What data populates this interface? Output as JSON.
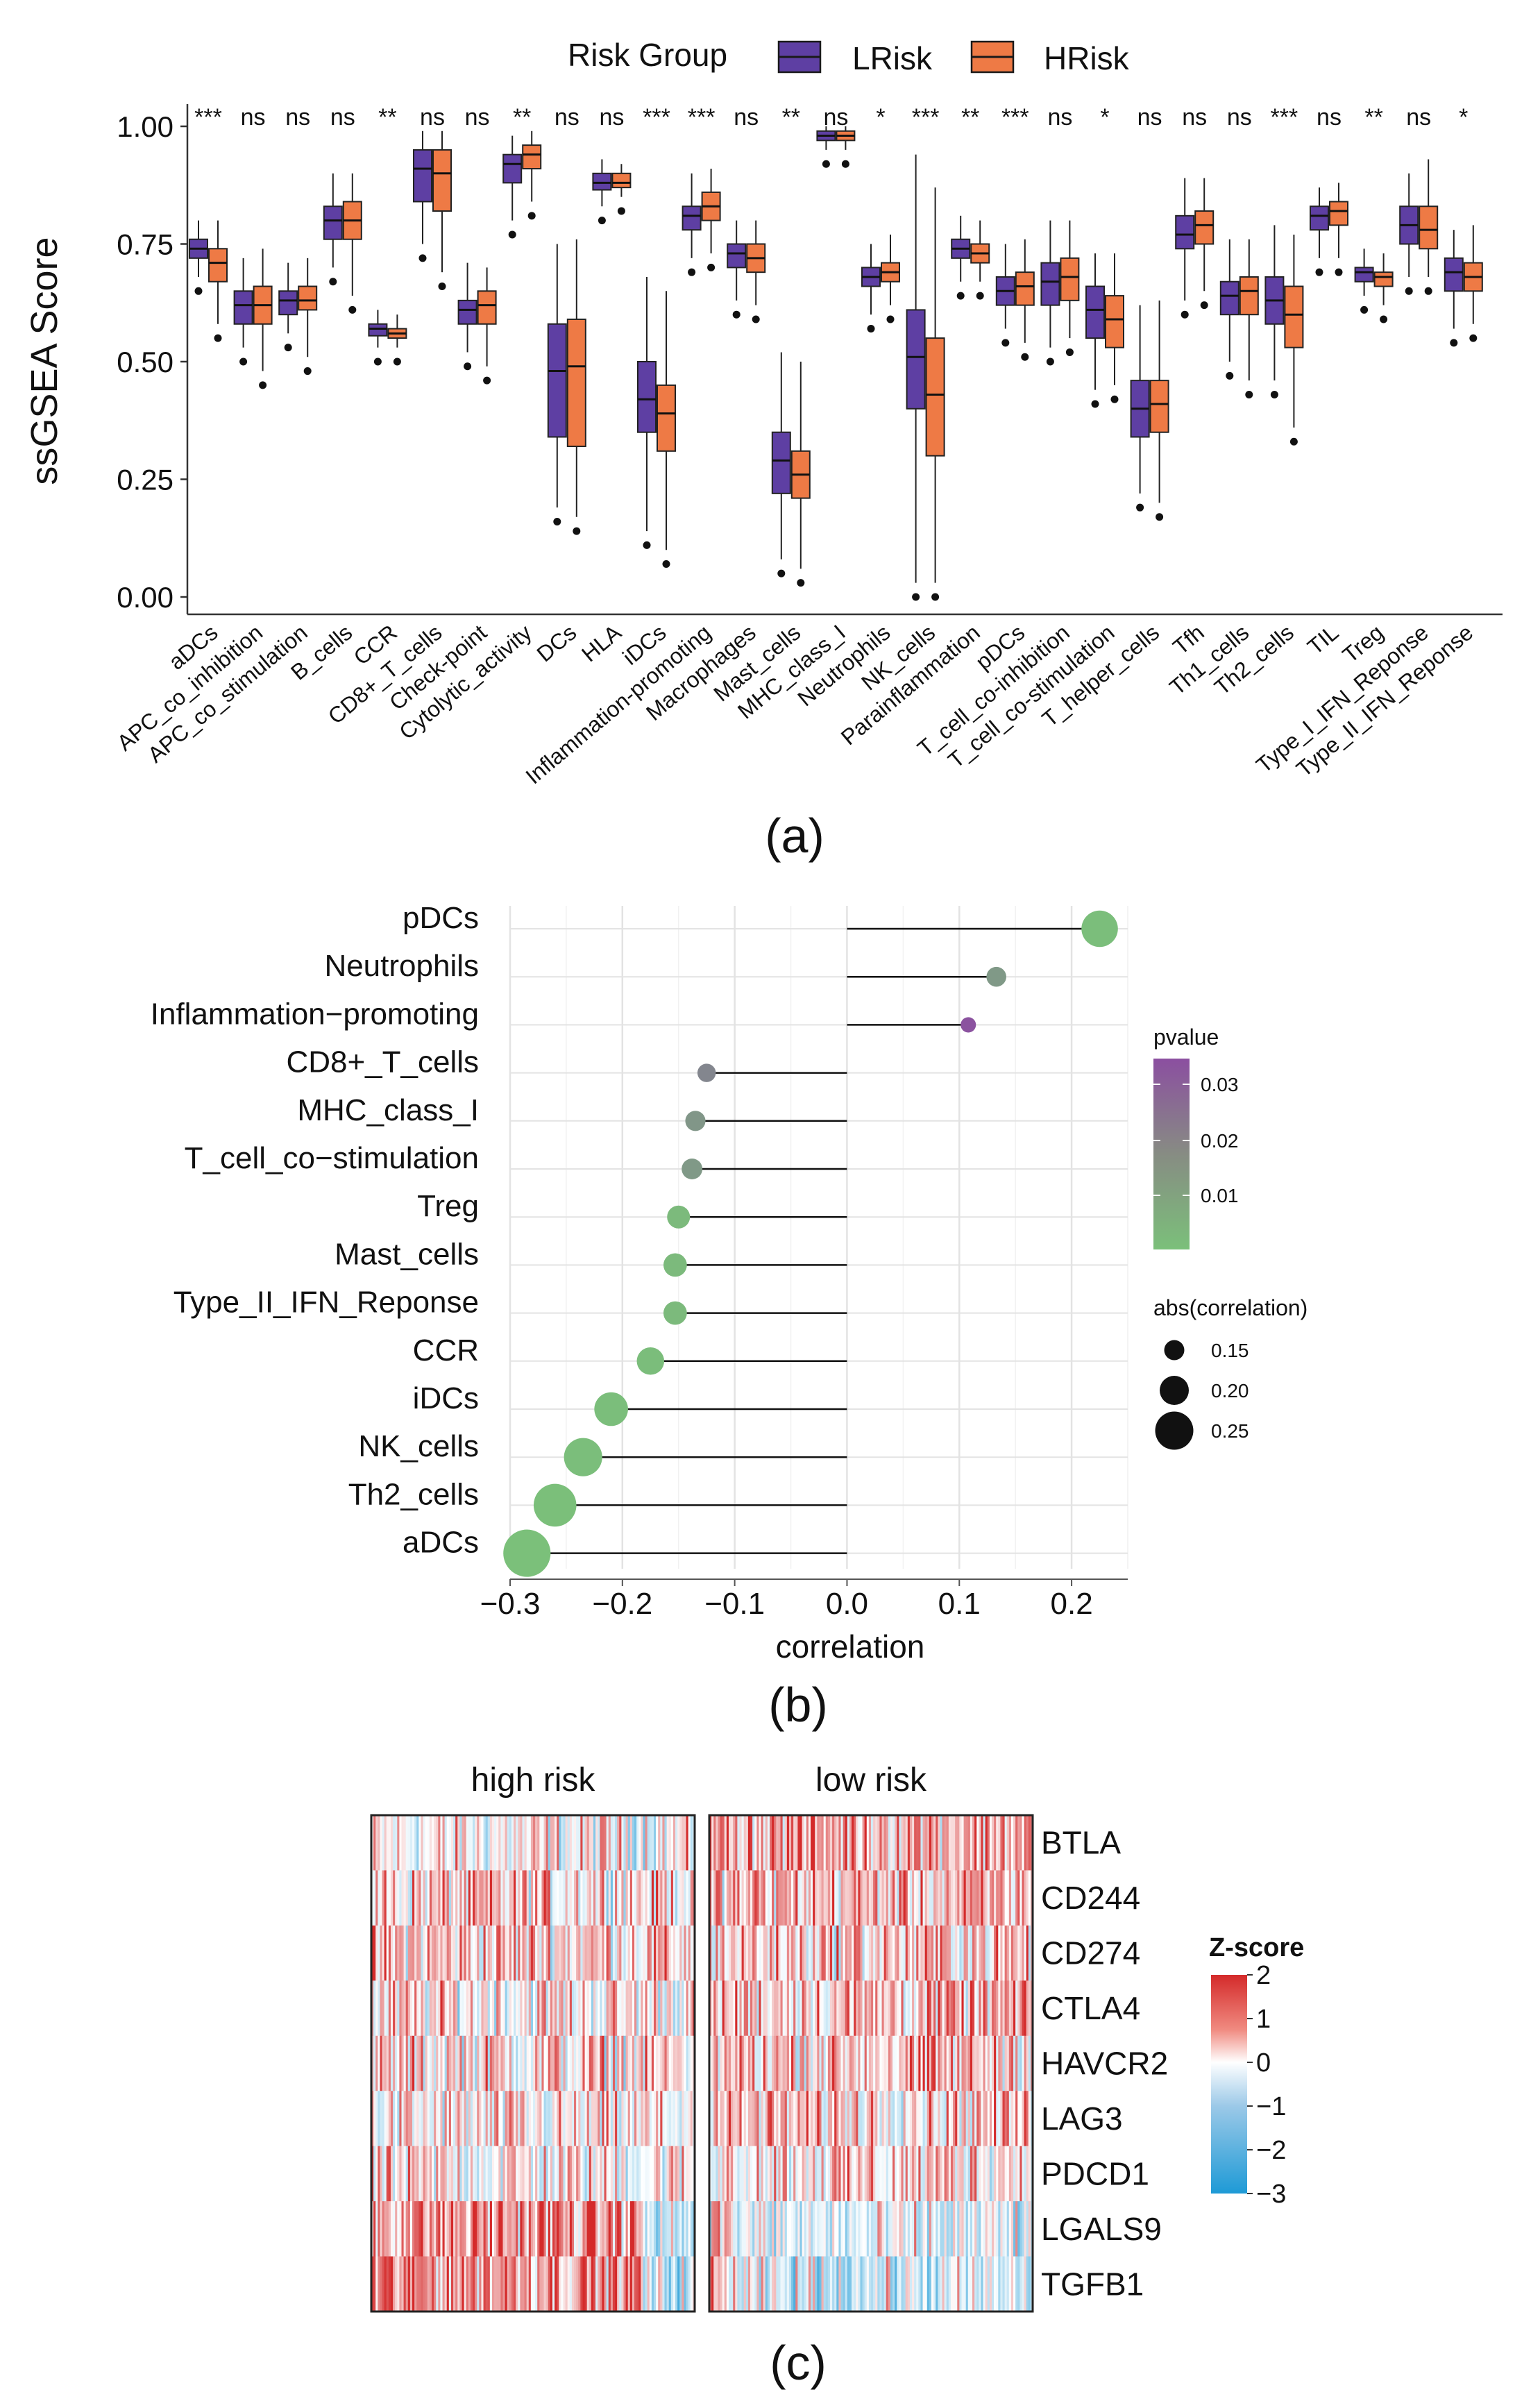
{
  "panels": {
    "a": {
      "label": "(a)",
      "chart_data": {
        "type": "box",
        "ylabel": "ssGSEA Score",
        "ylim": [
          0,
          1
        ],
        "yticks": [
          "0.00",
          "0.25",
          "0.50",
          "0.75",
          "1.00"
        ],
        "legend_title": "Risk Group",
        "legend": [
          {
            "name": "LRisk",
            "color": "#5E3FA3"
          },
          {
            "name": "HRisk",
            "color": "#EE7A45"
          }
        ],
        "categories": [
          "aDCs",
          "APC_co_inhibition",
          "APC_co_stimulation",
          "B_cells",
          "CCR",
          "CD8+_T_cells",
          "Check-point",
          "Cytolytic_activity",
          "DCs",
          "HLA",
          "iDCs",
          "Inflammation-promoting",
          "Macrophages",
          "Mast_cells",
          "MHC_class_I",
          "Neutrophils",
          "NK_cells",
          "Parainflammation",
          "pDCs",
          "T_cell_co-inhibition",
          "T_cell_co-stimulation",
          "T_helper_cells",
          "Tfh",
          "Th1_cells",
          "Th2_cells",
          "TIL",
          "Treg",
          "Type_I_IFN_Reponse",
          "Type_II_IFN_Reponse"
        ],
        "significance": [
          "***",
          "ns",
          "ns",
          "ns",
          "**",
          "ns",
          "ns",
          "**",
          "ns",
          "ns",
          "***",
          "***",
          "ns",
          "**",
          "ns",
          "*",
          "***",
          "**",
          "***",
          "ns",
          "*",
          "ns",
          "ns",
          "ns",
          "***",
          "ns",
          "**",
          "ns",
          "*"
        ],
        "series": [
          {
            "name": "LRisk",
            "stats": [
              [
                0.68,
                0.72,
                0.74,
                0.76,
                0.8
              ],
              [
                0.53,
                0.58,
                0.62,
                0.65,
                0.72
              ],
              [
                0.56,
                0.6,
                0.63,
                0.65,
                0.71
              ],
              [
                0.7,
                0.76,
                0.8,
                0.83,
                0.9
              ],
              [
                0.53,
                0.555,
                0.57,
                0.58,
                0.61
              ],
              [
                0.75,
                0.84,
                0.91,
                0.95,
                0.99
              ],
              [
                0.52,
                0.58,
                0.61,
                0.63,
                0.71
              ],
              [
                0.8,
                0.88,
                0.92,
                0.94,
                0.98
              ],
              [
                0.19,
                0.34,
                0.48,
                0.58,
                0.75
              ],
              [
                0.83,
                0.865,
                0.88,
                0.9,
                0.93
              ],
              [
                0.14,
                0.35,
                0.42,
                0.5,
                0.68
              ],
              [
                0.72,
                0.78,
                0.81,
                0.83,
                0.9
              ],
              [
                0.63,
                0.7,
                0.73,
                0.75,
                0.8
              ],
              [
                0.08,
                0.22,
                0.29,
                0.35,
                0.52
              ],
              [
                0.95,
                0.97,
                0.98,
                0.99,
                1.0
              ],
              [
                0.6,
                0.66,
                0.68,
                0.7,
                0.75
              ],
              [
                0.03,
                0.4,
                0.51,
                0.61,
                0.94
              ],
              [
                0.67,
                0.72,
                0.74,
                0.76,
                0.81
              ],
              [
                0.57,
                0.62,
                0.65,
                0.68,
                0.75
              ],
              [
                0.53,
                0.62,
                0.67,
                0.71,
                0.8
              ],
              [
                0.44,
                0.55,
                0.61,
                0.66,
                0.73
              ],
              [
                0.22,
                0.34,
                0.4,
                0.46,
                0.62
              ],
              [
                0.63,
                0.74,
                0.77,
                0.81,
                0.89
              ],
              [
                0.5,
                0.6,
                0.64,
                0.67,
                0.76
              ],
              [
                0.46,
                0.58,
                0.63,
                0.68,
                0.79
              ],
              [
                0.72,
                0.78,
                0.81,
                0.83,
                0.87
              ],
              [
                0.64,
                0.67,
                0.69,
                0.7,
                0.74
              ],
              [
                0.68,
                0.75,
                0.79,
                0.83,
                0.9
              ],
              [
                0.57,
                0.65,
                0.69,
                0.72,
                0.78
              ]
            ]
          },
          {
            "name": "HRisk",
            "stats": [
              [
                0.58,
                0.67,
                0.71,
                0.74,
                0.8
              ],
              [
                0.48,
                0.58,
                0.62,
                0.66,
                0.74
              ],
              [
                0.51,
                0.61,
                0.63,
                0.66,
                0.72
              ],
              [
                0.64,
                0.76,
                0.8,
                0.84,
                0.9
              ],
              [
                0.53,
                0.55,
                0.56,
                0.57,
                0.6
              ],
              [
                0.69,
                0.82,
                0.9,
                0.95,
                0.99
              ],
              [
                0.49,
                0.58,
                0.62,
                0.65,
                0.7
              ],
              [
                0.84,
                0.91,
                0.94,
                0.96,
                0.99
              ],
              [
                0.17,
                0.32,
                0.49,
                0.59,
                0.76
              ],
              [
                0.85,
                0.87,
                0.88,
                0.9,
                0.92
              ],
              [
                0.1,
                0.31,
                0.39,
                0.45,
                0.65
              ],
              [
                0.73,
                0.8,
                0.83,
                0.86,
                0.91
              ],
              [
                0.62,
                0.69,
                0.72,
                0.75,
                0.8
              ],
              [
                0.06,
                0.21,
                0.26,
                0.31,
                0.5
              ],
              [
                0.95,
                0.97,
                0.98,
                0.99,
                1.0
              ],
              [
                0.62,
                0.67,
                0.69,
                0.71,
                0.77
              ],
              [
                0.03,
                0.3,
                0.43,
                0.55,
                0.87
              ],
              [
                0.67,
                0.71,
                0.73,
                0.75,
                0.8
              ],
              [
                0.54,
                0.62,
                0.66,
                0.69,
                0.76
              ],
              [
                0.55,
                0.63,
                0.68,
                0.72,
                0.8
              ],
              [
                0.45,
                0.53,
                0.59,
                0.64,
                0.73
              ],
              [
                0.2,
                0.35,
                0.41,
                0.46,
                0.63
              ],
              [
                0.65,
                0.75,
                0.79,
                0.82,
                0.89
              ],
              [
                0.46,
                0.6,
                0.65,
                0.68,
                0.76
              ],
              [
                0.36,
                0.53,
                0.6,
                0.66,
                0.77
              ],
              [
                0.72,
                0.79,
                0.82,
                0.84,
                0.88
              ],
              [
                0.62,
                0.66,
                0.68,
                0.69,
                0.73
              ],
              [
                0.68,
                0.74,
                0.78,
                0.83,
                0.93
              ],
              [
                0.58,
                0.65,
                0.68,
                0.71,
                0.79
              ]
            ]
          }
        ]
      }
    },
    "b": {
      "label": "(b)",
      "chart_data": {
        "type": "lollipop",
        "xlabel": "correlation",
        "xlim": [
          -0.3,
          0.25
        ],
        "xticks": [
          -0.3,
          -0.2,
          -0.1,
          0.0,
          0.1,
          0.2
        ],
        "xtick_labels": [
          "−0.3",
          "−0.2",
          "−0.1",
          "0.0",
          "0.1",
          "0.2"
        ],
        "categories": [
          "pDCs",
          "Neutrophils",
          "Inflammation−promoting",
          "CD8+_T_cells",
          "MHC_class_I",
          "T_cell_co−stimulation",
          "Treg",
          "Mast_cells",
          "Type_II_IFN_Reponse",
          "CCR",
          "iDCs",
          "NK_cells",
          "Th2_cells",
          "aDCs"
        ],
        "correlation": [
          0.225,
          0.133,
          0.108,
          -0.125,
          -0.135,
          -0.138,
          -0.15,
          -0.153,
          -0.153,
          -0.175,
          -0.21,
          -0.235,
          -0.26,
          -0.285
        ],
        "pvalue": [
          0.0005,
          0.012,
          0.034,
          0.018,
          0.013,
          0.012,
          0.002,
          0.002,
          0.002,
          0.001,
          0.0005,
          0.0005,
          0.0003,
          0.0001
        ],
        "pvalue_legend": {
          "title": "pvalue",
          "ticks": [
            "0.03",
            "0.02",
            "0.01"
          ],
          "colors": [
            "#8B4FA0",
            "#7BC07A"
          ]
        },
        "size_legend": {
          "title": "abs(correlation)",
          "ticks": [
            "0.15",
            "0.20",
            "0.25"
          ]
        }
      }
    },
    "c": {
      "label": "(c)",
      "chart_data": {
        "type": "heatmap",
        "groups": [
          "high risk",
          "low risk"
        ],
        "genes": [
          "BTLA",
          "CD244",
          "CD274",
          "CTLA4",
          "HAVCR2",
          "LAG3",
          "PDCD1",
          "LGALS9",
          "TGFB1"
        ],
        "mean_zscore": {
          "high risk": [
            0.0,
            0.4,
            0.5,
            0.2,
            0.3,
            0.0,
            0.1,
            1.0,
            1.1
          ],
          "low risk": [
            0.9,
            0.6,
            0.5,
            0.6,
            0.6,
            0.5,
            0.4,
            -0.5,
            -0.6
          ]
        },
        "colorbar": {
          "title": "Z-score",
          "ticks": [
            "2",
            "1",
            "0",
            "−1",
            "−2",
            "−3"
          ],
          "range": [
            -3,
            2
          ]
        }
      }
    }
  }
}
